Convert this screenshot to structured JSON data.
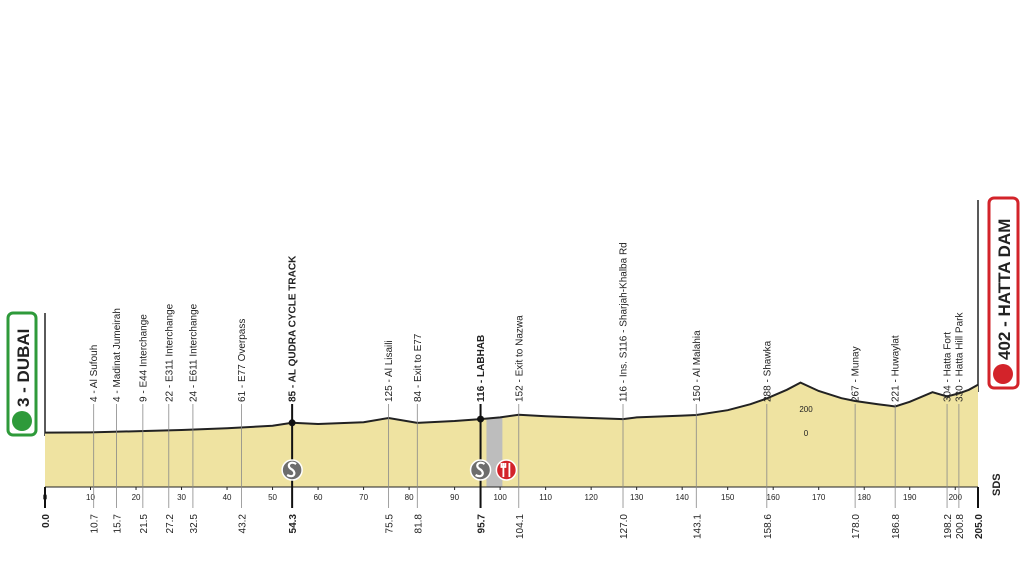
{
  "chart_data": {
    "type": "area",
    "start": "3 - DUBAI",
    "finish": "402 - HATTA DAM",
    "logo": "SDS",
    "color": "#efe3a1",
    "line_color": "#222222",
    "x": [
      0,
      10,
      20,
      30,
      40,
      50,
      54.3,
      60,
      70,
      75.5,
      81.8,
      90,
      95.7,
      100,
      104.1,
      110,
      120,
      127,
      130,
      140,
      143.1,
      150,
      155,
      158.6,
      163,
      166,
      170,
      175,
      178,
      183,
      186.8,
      190,
      195,
      198.2,
      200.8,
      203,
      205
    ],
    "values": [
      3,
      5,
      15,
      25,
      40,
      60,
      85,
      75,
      90,
      125,
      84,
      100,
      116,
      130,
      152,
      140,
      125,
      116,
      130,
      145,
      150,
      190,
      240,
      288,
      360,
      420,
      350,
      290,
      267,
      240,
      221,
      260,
      340,
      304,
      330,
      360,
      402
    ],
    "xlim": [
      0,
      205
    ],
    "xticks": [
      0,
      10,
      20,
      30,
      40,
      50,
      60,
      70,
      80,
      90,
      100,
      110,
      120,
      130,
      140,
      150,
      160,
      170,
      180,
      190,
      200
    ],
    "ylim": [
      -450,
      450
    ],
    "yticks": [
      0,
      200
    ],
    "feed_zone": [
      97,
      100.5
    ],
    "waypoints": [
      {
        "km": {
          "value": 0,
          "label": "0.0"
        },
        "bold": true
      },
      {
        "km": 10.7,
        "name": "4 - Al Sufouh"
      },
      {
        "km": 15.7,
        "name": "4 - Madinat Jumeirah"
      },
      {
        "km": 21.5,
        "name": "9 - E44 Interchange"
      },
      {
        "km": 27.2,
        "name": "22 - E311 Interchange"
      },
      {
        "km": 32.5,
        "name": "24 - E611 Interchange"
      },
      {
        "km": 43.2,
        "name": "61 - E77 Overpass"
      },
      {
        "km": 54.3,
        "name": "85 - AL QUDRA CYCLE TRACK",
        "bold": true,
        "sprint": true
      },
      {
        "km": 75.5,
        "name": "125 - Al Lisaili"
      },
      {
        "km": 81.8,
        "name": "84 - Exit to E77"
      },
      {
        "km": 95.7,
        "name": "116 - LABHAB",
        "bold": true,
        "sprint": true
      },
      {
        "km": 104.1,
        "name": "152 - Exit to Nazwa"
      },
      {
        "km": {
          "value": 127,
          "label": "127.0"
        },
        "name": "116 - Ins. S116 - Sharjah-Khalba Rd"
      },
      {
        "km": 143.1,
        "name": "150 - Al Malahia"
      },
      {
        "km": 158.6,
        "name": "288 - Shawka"
      },
      {
        "km": {
          "value": 178,
          "label": "178.0"
        },
        "name": "267 - Munay"
      },
      {
        "km": 186.8,
        "name": "221 - Huwaylat"
      },
      {
        "km": 198.2,
        "name": "304 - Hatta Fort"
      },
      {
        "km": 200.8,
        "name": "330 - Hatta Hill Park"
      },
      {
        "km": {
          "value": 205,
          "label": "205.0"
        },
        "bold": true
      }
    ]
  }
}
